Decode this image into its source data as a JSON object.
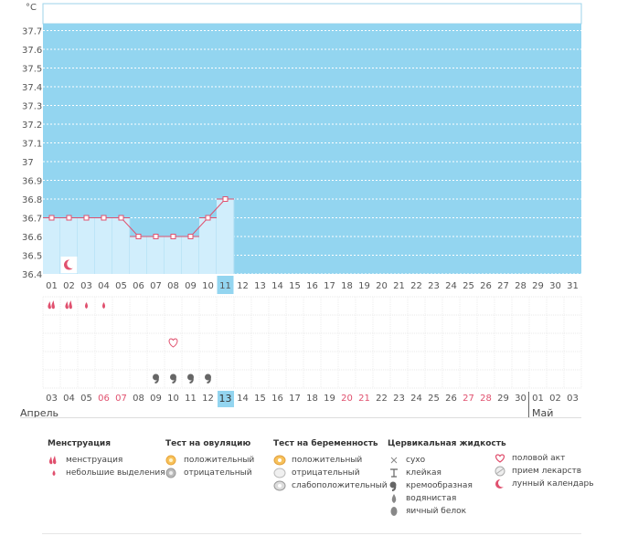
{
  "unit": "°C",
  "y_ticks": [
    "37.7",
    "37.6",
    "37.5",
    "37.4",
    "37.3",
    "37.2",
    "37.1",
    "37",
    "36.9",
    "36.8",
    "36.7",
    "36.6",
    "36.5",
    "36.4"
  ],
  "cycle_days": [
    "01",
    "02",
    "03",
    "04",
    "05",
    "06",
    "07",
    "08",
    "09",
    "10",
    "11",
    "12",
    "13",
    "14",
    "15",
    "16",
    "17",
    "18",
    "19",
    "20",
    "21",
    "22",
    "23",
    "24",
    "25",
    "26",
    "27",
    "28",
    "29",
    "30",
    "31"
  ],
  "current_cycle_day": "11",
  "calendar_dates": [
    "03",
    "04",
    "05",
    "06",
    "07",
    "08",
    "09",
    "10",
    "11",
    "12",
    "13",
    "14",
    "15",
    "16",
    "17",
    "18",
    "19",
    "20",
    "21",
    "22",
    "23",
    "24",
    "25",
    "26",
    "27",
    "28",
    "29",
    "30",
    "01",
    "02",
    "03"
  ],
  "weekend_indices": [
    3,
    4,
    17,
    18,
    24,
    25
  ],
  "today_index": 10,
  "months": {
    "first": "Апрель",
    "second": "Май"
  },
  "chart_data": {
    "type": "line",
    "x": [
      1,
      2,
      3,
      4,
      5,
      6,
      7,
      8,
      9,
      10,
      11
    ],
    "values": [
      36.7,
      36.7,
      36.7,
      36.7,
      36.7,
      36.6,
      36.6,
      36.6,
      36.6,
      36.7,
      36.8
    ],
    "ylim": [
      36.4,
      37.8
    ],
    "grid": true,
    "colors": {
      "plot_bg": "#93d5f0",
      "area": "#d1eefc",
      "line": "#e0506e",
      "marker_fill": "#ffffff"
    }
  },
  "markers": {
    "moon_day": 2,
    "menstruation_days": [
      1,
      2
    ],
    "spotting_days": [
      3,
      4
    ],
    "intercourse_day": 8,
    "creamy_days": [
      7,
      8,
      9,
      10
    ]
  },
  "legend": {
    "menstruation": {
      "title": "Менструация",
      "items": [
        "менструация",
        "небольшие выделения"
      ]
    },
    "ovulation": {
      "title": "Тест на овуляцию",
      "items": [
        "положительный",
        "отрицательный"
      ]
    },
    "pregnancy": {
      "title": "Тест на беременность",
      "items": [
        "положительный",
        "отрицательный",
        "слабоположительный"
      ]
    },
    "cervical": {
      "title": "Цервикальная жидкость",
      "items": [
        "сухо",
        "клейкая",
        "кремообразная",
        "водянистая",
        "яичный белок"
      ]
    },
    "other": {
      "items": [
        "половой акт",
        "прием лекарств",
        "лунный календарь"
      ]
    }
  }
}
